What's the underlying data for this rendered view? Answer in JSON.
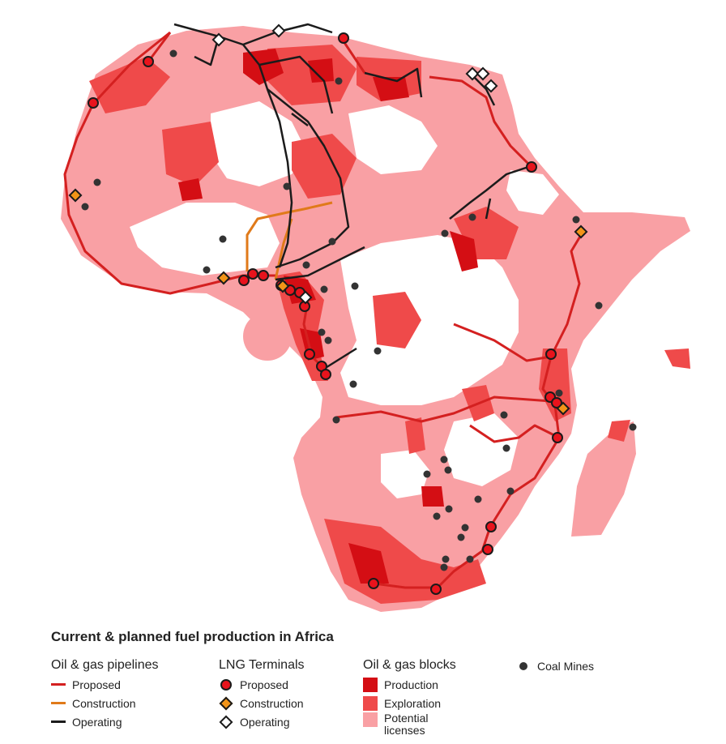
{
  "colors": {
    "pipeline_proposed": "#d42020",
    "pipeline_construction": "#e07a1a",
    "pipeline_operating": "#1b1b1b",
    "block_production": "#d40e14",
    "block_exploration": "#ef4a4a",
    "block_potential": "#f9a0a4",
    "lng_proposed_fill": "#e8131c",
    "lng_construction_fill": "#f29418",
    "lng_operating_fill": "#ffffff",
    "coal": "#333333"
  },
  "legend": {
    "title": "Current & planned fuel production in Africa",
    "pipelines": {
      "heading": "Oil & gas pipelines",
      "items": [
        {
          "label": "Proposed",
          "color": "#d42020"
        },
        {
          "label": "Construction",
          "color": "#e07a1a"
        },
        {
          "label": "Operating",
          "color": "#1b1b1b"
        }
      ]
    },
    "lng": {
      "heading": "LNG Terminals",
      "items": [
        {
          "label": "Proposed",
          "shape": "circle",
          "color": "#e8131c"
        },
        {
          "label": "Construction",
          "shape": "diamond",
          "color": "#f29418"
        },
        {
          "label": "Operating",
          "shape": "diamond",
          "color": "#ffffff"
        }
      ]
    },
    "blocks": {
      "heading": "Oil & gas blocks",
      "items": [
        {
          "label": "Production",
          "color": "#d40e14"
        },
        {
          "label": "Exploration",
          "color": "#ef4a4a"
        },
        {
          "label": "Potential licenses",
          "color": "#f9a0a4"
        }
      ]
    },
    "coal": {
      "label": "Coal Mines",
      "color": "#333333"
    }
  }
}
